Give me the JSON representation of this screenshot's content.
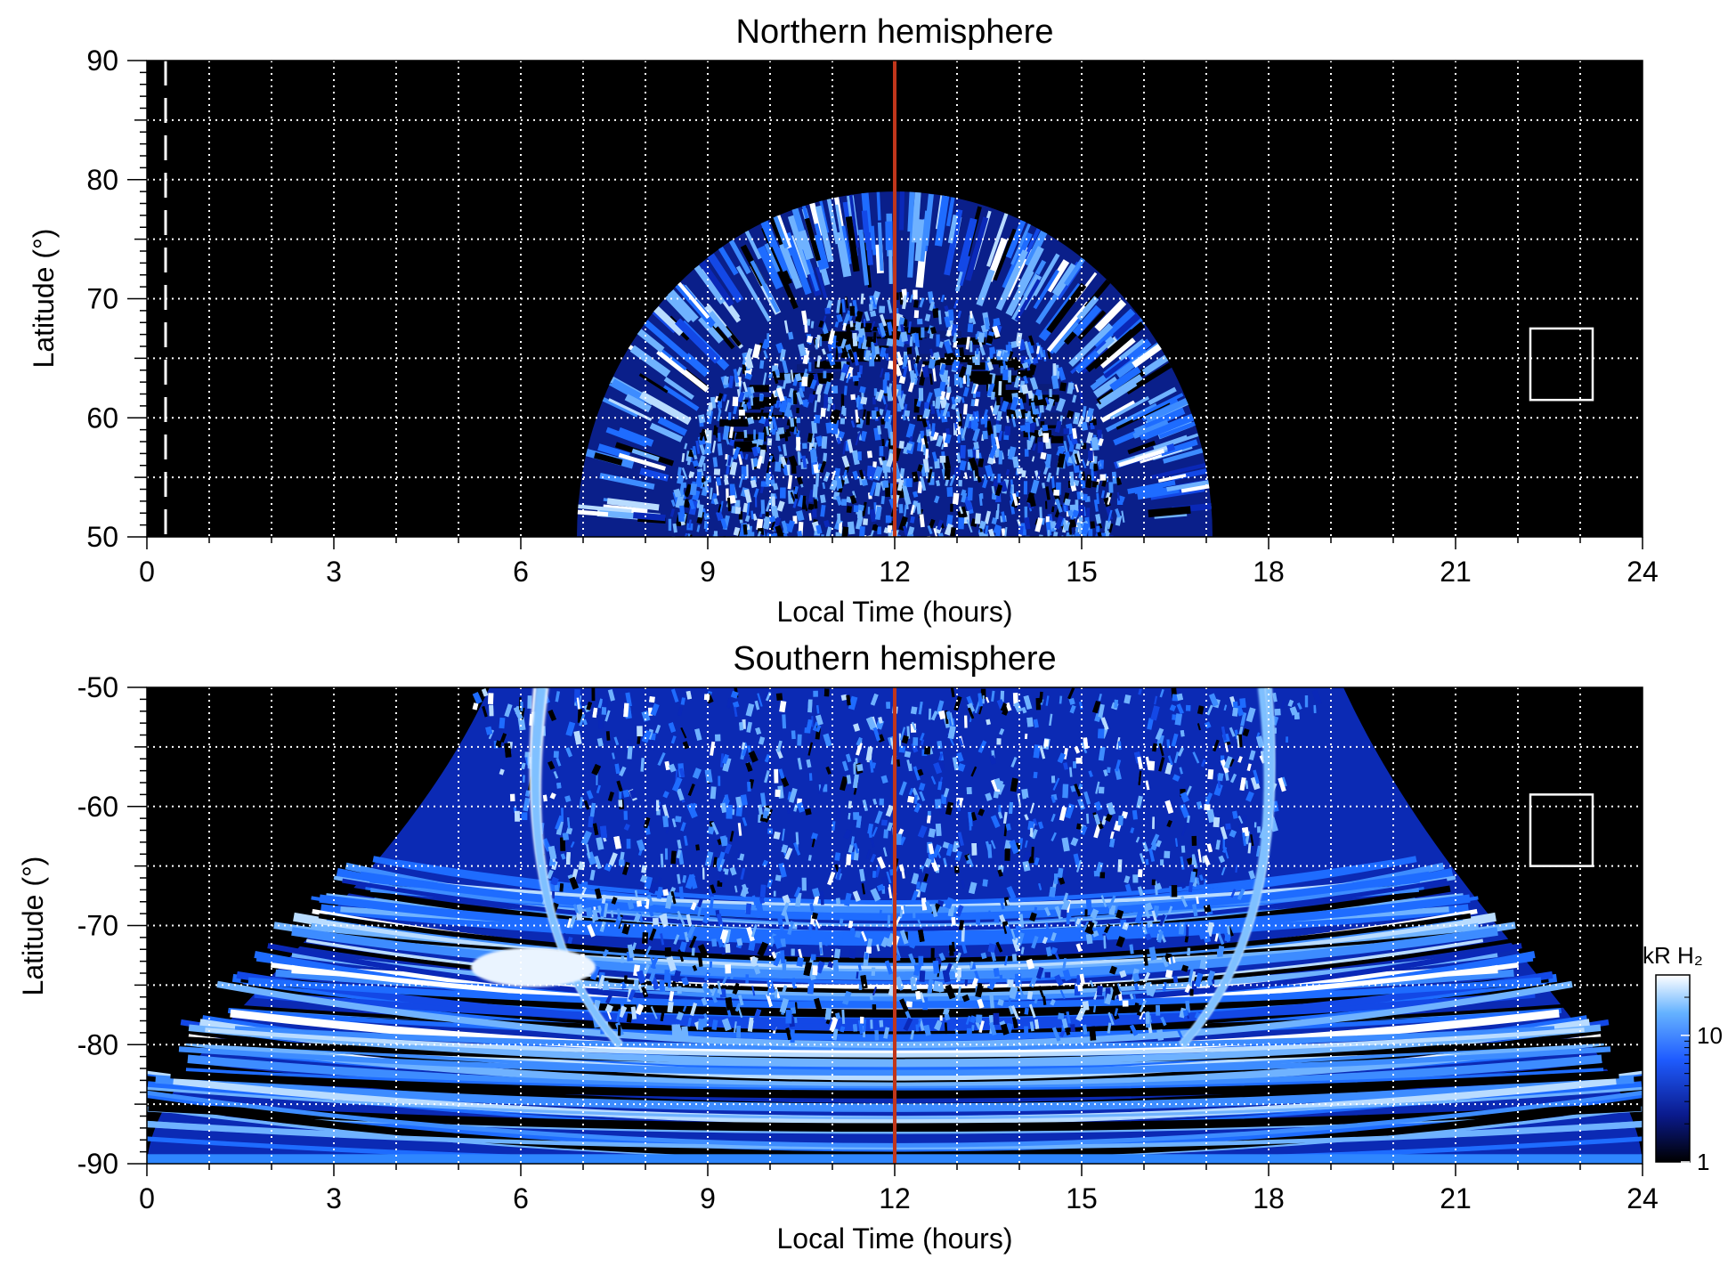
{
  "chart_data": [
    {
      "type": "heatmap",
      "title": "Northern hemisphere",
      "xlabel": "Local Time (hours)",
      "ylabel": "Latitude (°)",
      "xlim": [
        0,
        24
      ],
      "ylim": [
        50,
        90
      ],
      "x_ticks": [
        "0",
        "3",
        "6",
        "9",
        "12",
        "15",
        "18",
        "21",
        "24"
      ],
      "y_ticks": [
        "50",
        "60",
        "70",
        "80",
        "90"
      ],
      "grid": true,
      "emission_region": {
        "lt_start": 7.0,
        "lt_end": 17.2,
        "lat_base": 50,
        "lat_peak": 79
      },
      "inner_dark_band_lat": [
        65,
        68
      ],
      "noon_line_lt": 12,
      "dashed_line_lt": 0.3,
      "white_box": {
        "lt": [
          22.2,
          23.2
        ],
        "lat": [
          61.5,
          67.5
        ]
      }
    },
    {
      "type": "heatmap",
      "title": "Southern hemisphere",
      "xlabel": "Local Time (hours)",
      "ylabel": "Latitude (°)",
      "xlim": [
        0,
        24
      ],
      "ylim": [
        -90,
        -50
      ],
      "x_ticks": [
        "0",
        "3",
        "6",
        "9",
        "12",
        "15",
        "18",
        "21",
        "24"
      ],
      "y_ticks": [
        "-50",
        "-60",
        "-70",
        "-80",
        "-90"
      ],
      "grid": true,
      "emission_region": {
        "lt_start_top": 5.5,
        "lt_end_top": 19.2,
        "lt_start_bottom": 0,
        "lt_end_bottom": 24,
        "lat_top": -50,
        "lat_bottom": -90
      },
      "bright_arcs_lt": [
        6.3,
        17.9
      ],
      "noon_line_lt": 12,
      "white_box": {
        "lt": [
          22.2,
          23.2
        ],
        "lat": [
          -65,
          -59
        ]
      }
    }
  ],
  "colorbar": {
    "label": "kR H₂",
    "ticks": [
      "1",
      "10"
    ],
    "scale": "log",
    "range": [
      1,
      30
    ],
    "colors": [
      "#000000",
      "#0a1a8c",
      "#1f5cff",
      "#66b3ff",
      "#ffffff"
    ]
  },
  "colors": {
    "background": "#000000",
    "noon_line": "#c0361b",
    "grid": "#ffffff",
    "emission_low": "#0b2fd0",
    "emission_mid": "#1e78ff",
    "emission_high": "#ffffff"
  }
}
